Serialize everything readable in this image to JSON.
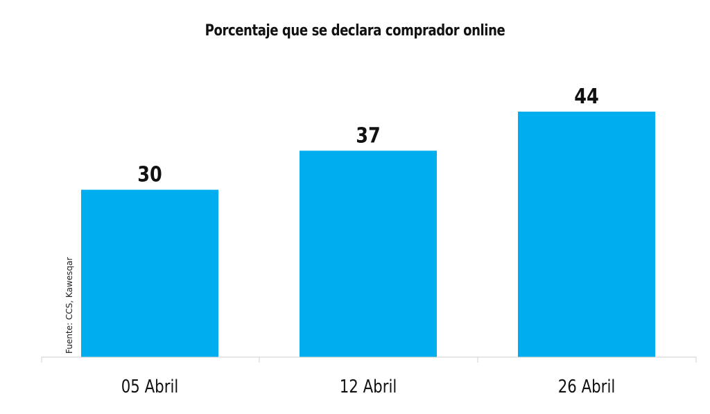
{
  "chart_data": {
    "type": "bar",
    "title": "Porcentaje que se declara comprador online",
    "categories": [
      "05 Abril",
      "12 Abril",
      "26 Abril"
    ],
    "series": [
      {
        "values": [
          30,
          37,
          44
        ]
      }
    ],
    "data_labels": [
      "30",
      "37",
      "44"
    ],
    "xlabel": "",
    "ylabel": "",
    "ylim": [
      0,
      44
    ],
    "grid": false,
    "legend": "none",
    "bar_color": "#00AEEF",
    "source_note": "Fuente: CCS, Kawesqar"
  }
}
